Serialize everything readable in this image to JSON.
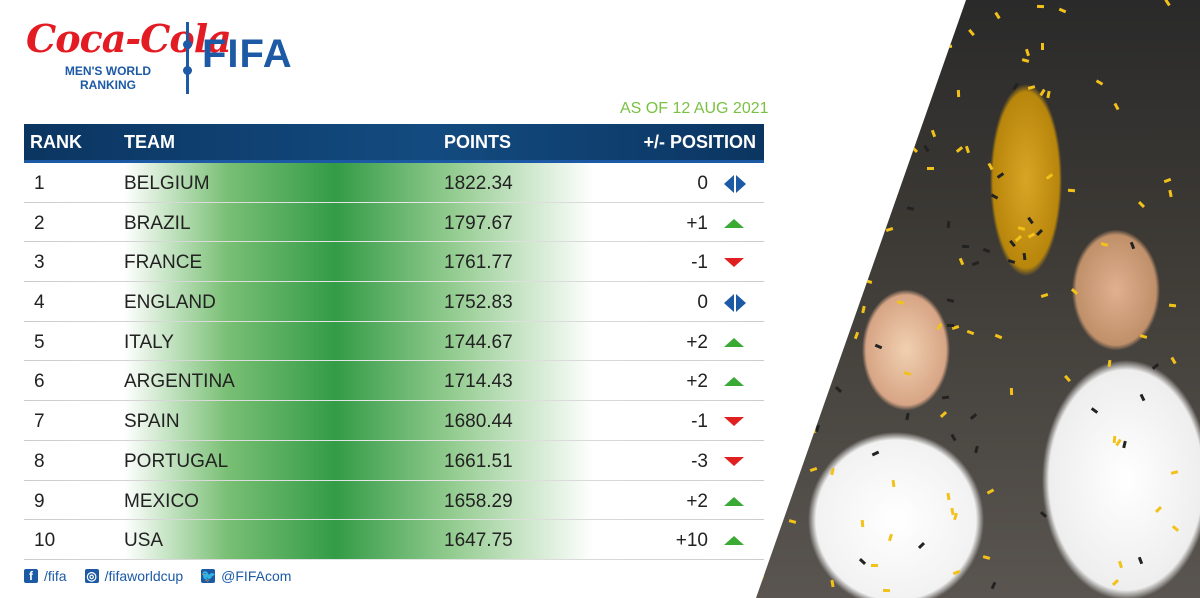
{
  "header": {
    "sponsor": "Coca-Cola",
    "subtitle_lines": [
      "MEN'S WORLD",
      "RANKING"
    ],
    "org": "FIFA",
    "as_of": "AS OF 12 AUG 2021"
  },
  "table": {
    "columns": {
      "rank": "RANK",
      "team": "TEAM",
      "points": "POINTS",
      "position": "+/- POSITION"
    },
    "rows": [
      {
        "rank": "1",
        "team": "BELGIUM",
        "points": "1822.34",
        "change": "0",
        "trend": "same"
      },
      {
        "rank": "2",
        "team": "BRAZIL",
        "points": "1797.67",
        "change": "+1",
        "trend": "up"
      },
      {
        "rank": "3",
        "team": "FRANCE",
        "points": "1761.77",
        "change": "-1",
        "trend": "down"
      },
      {
        "rank": "4",
        "team": "ENGLAND",
        "points": "1752.83",
        "change": "0",
        "trend": "same"
      },
      {
        "rank": "5",
        "team": "ITALY",
        "points": "1744.67",
        "change": "+2",
        "trend": "up"
      },
      {
        "rank": "6",
        "team": "ARGENTINA",
        "points": "1714.43",
        "change": "+2",
        "trend": "up"
      },
      {
        "rank": "7",
        "team": "SPAIN",
        "points": "1680.44",
        "change": "-1",
        "trend": "down"
      },
      {
        "rank": "8",
        "team": "PORTUGAL",
        "points": "1661.51",
        "change": "-3",
        "trend": "down"
      },
      {
        "rank": "9",
        "team": "MEXICO",
        "points": "1658.29",
        "change": "+2",
        "trend": "up"
      },
      {
        "rank": "10",
        "team": "USA",
        "points": "1647.75",
        "change": "+10",
        "trend": "up"
      }
    ]
  },
  "social": [
    {
      "icon": "facebook-icon",
      "glyph": "f",
      "handle": "/fifa"
    },
    {
      "icon": "instagram-icon",
      "glyph": "◎",
      "handle": "/fifaworldcup"
    },
    {
      "icon": "twitter-icon",
      "glyph": "🐦",
      "handle": "@FIFAcom"
    }
  ],
  "colors": {
    "brand_blue": "#1c5aa6",
    "header_blue": "#0e3f6e",
    "coke_red": "#e31b23",
    "up_green": "#3aaa35",
    "down_red": "#e02020",
    "date_green": "#7ac143"
  }
}
